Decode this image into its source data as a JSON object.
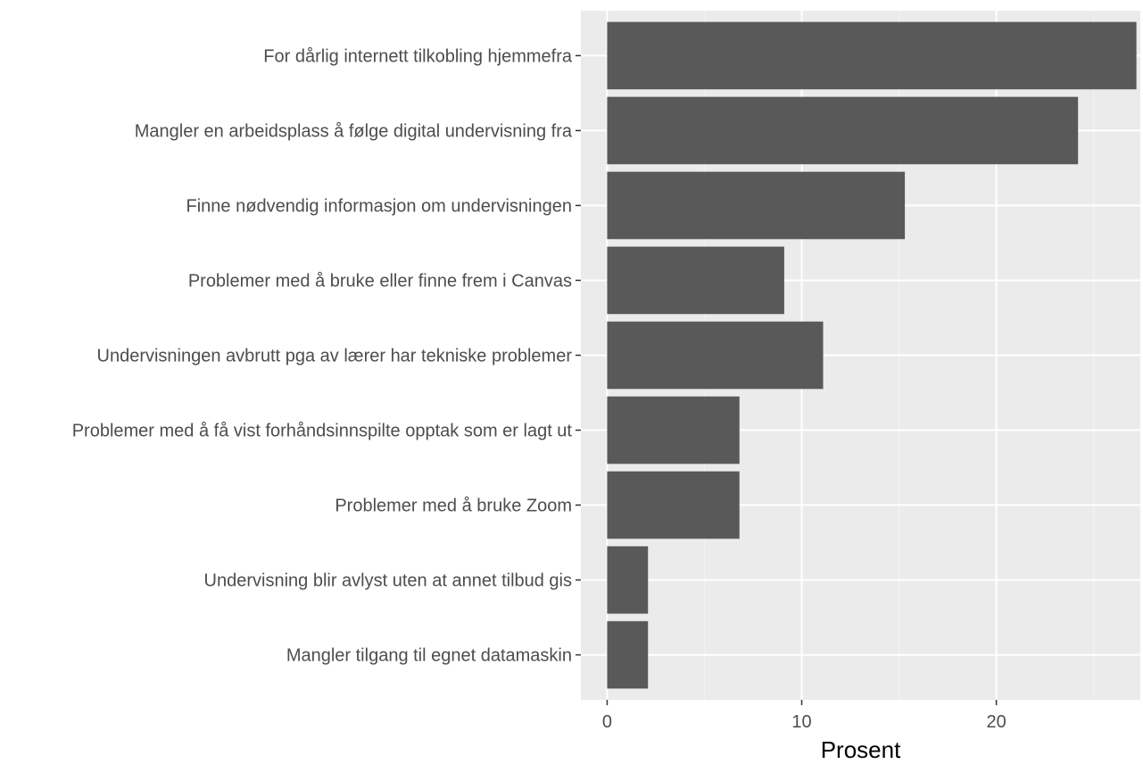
{
  "chart_data": {
    "type": "bar",
    "orientation": "horizontal",
    "title": "",
    "xlabel": "Prosent",
    "ylabel": "",
    "categories": [
      "For dårlig internett tilkobling hjemmefra",
      "Mangler en arbeidsplass å følge digital undervisning fra",
      "Finne nødvendig informasjon om undervisningen",
      "Problemer med å bruke eller finne frem i Canvas",
      "Undervisningen avbrutt pga av lærer har tekniske problemer",
      "Problemer med å få vist forhåndsinnspilte opptak som er lagt ut",
      "Problemer med å bruke Zoom",
      "Undervisning blir avlyst uten at annet tilbud gis",
      "Mangler tilgang til egnet datamaskin"
    ],
    "values": [
      27.2,
      24.2,
      15.3,
      9.1,
      11.1,
      6.8,
      6.8,
      2.1,
      2.1
    ],
    "xlim": [
      -1.35,
      27.4
    ],
    "xticks": [
      0,
      10,
      20
    ],
    "xtick_labels": [
      "0",
      "10",
      "20"
    ],
    "grid": true,
    "legend": "none",
    "colors": {
      "bar": "#595959",
      "panel": "#ebebeb",
      "grid_major": "#ffffff",
      "grid_minor": "#f2f2f2",
      "tick": "#333333",
      "text": "#4d4d4d"
    }
  }
}
